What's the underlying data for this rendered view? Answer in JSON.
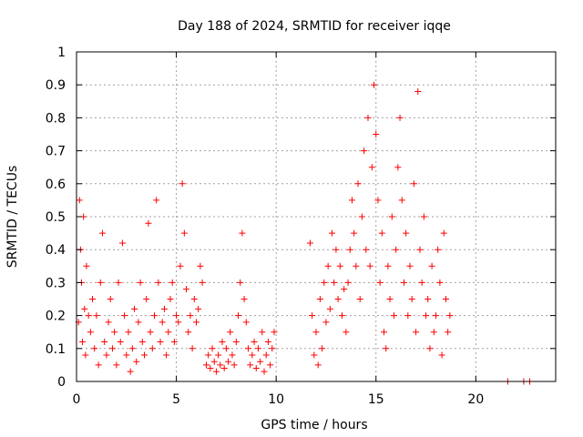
{
  "chart_data": {
    "type": "scatter",
    "title": "Day 188 of 2024, SRMTID for receiver iqqe",
    "xlabel": "GPS time / hours",
    "ylabel": "SRMTID / TECUs",
    "xlim": [
      0,
      24
    ],
    "ylim": [
      0,
      1
    ],
    "xticks": [
      0,
      5,
      10,
      15,
      20
    ],
    "xtick_labels": [
      "0",
      "5",
      "10",
      "15",
      "20"
    ],
    "yticks": [
      0,
      0.1,
      0.2,
      0.3,
      0.4,
      0.5,
      0.6,
      0.7,
      0.8,
      0.9,
      1
    ],
    "ytick_labels": [
      "0",
      "0.1",
      "0.2",
      "0.3",
      "0.4",
      "0.5",
      "0.6",
      "0.7",
      "0.8",
      "0.9",
      "1"
    ],
    "grid": true,
    "marker": "plus",
    "color": "#ff0000",
    "series": [
      {
        "name": "iqqe",
        "points": [
          [
            0.1,
            0.18
          ],
          [
            0.15,
            0.55
          ],
          [
            0.2,
            0.4
          ],
          [
            0.25,
            0.3
          ],
          [
            0.3,
            0.12
          ],
          [
            0.35,
            0.5
          ],
          [
            0.4,
            0.22
          ],
          [
            0.45,
            0.08
          ],
          [
            0.5,
            0.35
          ],
          [
            0.6,
            0.2
          ],
          [
            0.7,
            0.15
          ],
          [
            0.8,
            0.25
          ],
          [
            0.9,
            0.1
          ],
          [
            1.0,
            0.2
          ],
          [
            1.1,
            0.05
          ],
          [
            1.2,
            0.3
          ],
          [
            1.3,
            0.45
          ],
          [
            1.4,
            0.12
          ],
          [
            1.5,
            0.08
          ],
          [
            1.6,
            0.18
          ],
          [
            1.7,
            0.25
          ],
          [
            1.8,
            0.1
          ],
          [
            1.9,
            0.15
          ],
          [
            2.0,
            0.05
          ],
          [
            2.1,
            0.3
          ],
          [
            2.2,
            0.12
          ],
          [
            2.3,
            0.42
          ],
          [
            2.4,
            0.2
          ],
          [
            2.5,
            0.08
          ],
          [
            2.6,
            0.15
          ],
          [
            2.7,
            0.03
          ],
          [
            2.8,
            0.1
          ],
          [
            2.9,
            0.22
          ],
          [
            3.0,
            0.06
          ],
          [
            3.1,
            0.18
          ],
          [
            3.2,
            0.3
          ],
          [
            3.3,
            0.12
          ],
          [
            3.4,
            0.08
          ],
          [
            3.5,
            0.25
          ],
          [
            3.6,
            0.48
          ],
          [
            3.7,
            0.15
          ],
          [
            3.8,
            0.1
          ],
          [
            3.9,
            0.2
          ],
          [
            4.0,
            0.55
          ],
          [
            4.1,
            0.3
          ],
          [
            4.2,
            0.12
          ],
          [
            4.3,
            0.18
          ],
          [
            4.4,
            0.22
          ],
          [
            4.5,
            0.08
          ],
          [
            4.6,
            0.15
          ],
          [
            4.7,
            0.25
          ],
          [
            4.8,
            0.3
          ],
          [
            4.9,
            0.12
          ],
          [
            5.0,
            0.2
          ],
          [
            5.1,
            0.18
          ],
          [
            5.2,
            0.35
          ],
          [
            5.3,
            0.6
          ],
          [
            5.4,
            0.45
          ],
          [
            5.5,
            0.28
          ],
          [
            5.6,
            0.15
          ],
          [
            5.7,
            0.2
          ],
          [
            5.8,
            0.1
          ],
          [
            5.9,
            0.25
          ],
          [
            6.0,
            0.18
          ],
          [
            6.1,
            0.22
          ],
          [
            6.2,
            0.35
          ],
          [
            6.3,
            0.3
          ],
          [
            6.5,
            0.05
          ],
          [
            6.6,
            0.08
          ],
          [
            6.7,
            0.04
          ],
          [
            6.8,
            0.1
          ],
          [
            6.9,
            0.06
          ],
          [
            7.0,
            0.03
          ],
          [
            7.1,
            0.08
          ],
          [
            7.2,
            0.05
          ],
          [
            7.3,
            0.12
          ],
          [
            7.4,
            0.04
          ],
          [
            7.5,
            0.1
          ],
          [
            7.6,
            0.06
          ],
          [
            7.7,
            0.15
          ],
          [
            7.8,
            0.08
          ],
          [
            7.9,
            0.05
          ],
          [
            8.0,
            0.12
          ],
          [
            8.1,
            0.2
          ],
          [
            8.2,
            0.3
          ],
          [
            8.3,
            0.45
          ],
          [
            8.4,
            0.25
          ],
          [
            8.5,
            0.18
          ],
          [
            8.6,
            0.1
          ],
          [
            8.7,
            0.05
          ],
          [
            8.8,
            0.08
          ],
          [
            8.9,
            0.12
          ],
          [
            9.0,
            0.04
          ],
          [
            9.1,
            0.1
          ],
          [
            9.2,
            0.06
          ],
          [
            9.3,
            0.15
          ],
          [
            9.4,
            0.03
          ],
          [
            9.5,
            0.08
          ],
          [
            9.6,
            0.12
          ],
          [
            9.7,
            0.05
          ],
          [
            9.8,
            0.1
          ],
          [
            9.9,
            0.15
          ],
          [
            11.7,
            0.42
          ],
          [
            11.8,
            0.2
          ],
          [
            11.9,
            0.08
          ],
          [
            12.0,
            0.15
          ],
          [
            12.1,
            0.05
          ],
          [
            12.2,
            0.25
          ],
          [
            12.3,
            0.1
          ],
          [
            12.4,
            0.3
          ],
          [
            12.5,
            0.18
          ],
          [
            12.6,
            0.35
          ],
          [
            12.7,
            0.22
          ],
          [
            12.8,
            0.45
          ],
          [
            12.9,
            0.3
          ],
          [
            13.0,
            0.4
          ],
          [
            13.1,
            0.25
          ],
          [
            13.2,
            0.35
          ],
          [
            13.3,
            0.2
          ],
          [
            13.4,
            0.28
          ],
          [
            13.5,
            0.15
          ],
          [
            13.6,
            0.3
          ],
          [
            13.7,
            0.4
          ],
          [
            13.8,
            0.55
          ],
          [
            13.9,
            0.45
          ],
          [
            14.0,
            0.35
          ],
          [
            14.1,
            0.6
          ],
          [
            14.2,
            0.25
          ],
          [
            14.3,
            0.5
          ],
          [
            14.4,
            0.7
          ],
          [
            14.5,
            0.4
          ],
          [
            14.6,
            0.8
          ],
          [
            14.7,
            0.35
          ],
          [
            14.8,
            0.65
          ],
          [
            14.9,
            0.9
          ],
          [
            15.0,
            0.75
          ],
          [
            15.1,
            0.55
          ],
          [
            15.2,
            0.3
          ],
          [
            15.3,
            0.45
          ],
          [
            15.4,
            0.15
          ],
          [
            15.5,
            0.1
          ],
          [
            15.6,
            0.35
          ],
          [
            15.7,
            0.25
          ],
          [
            15.8,
            0.5
          ],
          [
            15.9,
            0.2
          ],
          [
            16.0,
            0.4
          ],
          [
            16.1,
            0.65
          ],
          [
            16.2,
            0.8
          ],
          [
            16.3,
            0.55
          ],
          [
            16.4,
            0.3
          ],
          [
            16.5,
            0.45
          ],
          [
            16.6,
            0.2
          ],
          [
            16.7,
            0.35
          ],
          [
            16.8,
            0.25
          ],
          [
            16.9,
            0.6
          ],
          [
            17.0,
            0.15
          ],
          [
            17.1,
            0.88
          ],
          [
            17.2,
            0.4
          ],
          [
            17.3,
            0.3
          ],
          [
            17.4,
            0.5
          ],
          [
            17.5,
            0.2
          ],
          [
            17.6,
            0.25
          ],
          [
            17.7,
            0.1
          ],
          [
            17.8,
            0.35
          ],
          [
            17.9,
            0.15
          ],
          [
            18.0,
            0.2
          ],
          [
            18.1,
            0.4
          ],
          [
            18.2,
            0.3
          ],
          [
            18.3,
            0.08
          ],
          [
            18.4,
            0.45
          ],
          [
            18.5,
            0.25
          ],
          [
            18.6,
            0.15
          ],
          [
            18.7,
            0.2
          ],
          [
            21.6,
            0.0
          ],
          [
            22.4,
            0.0
          ],
          [
            22.7,
            0.0
          ]
        ]
      }
    ]
  }
}
